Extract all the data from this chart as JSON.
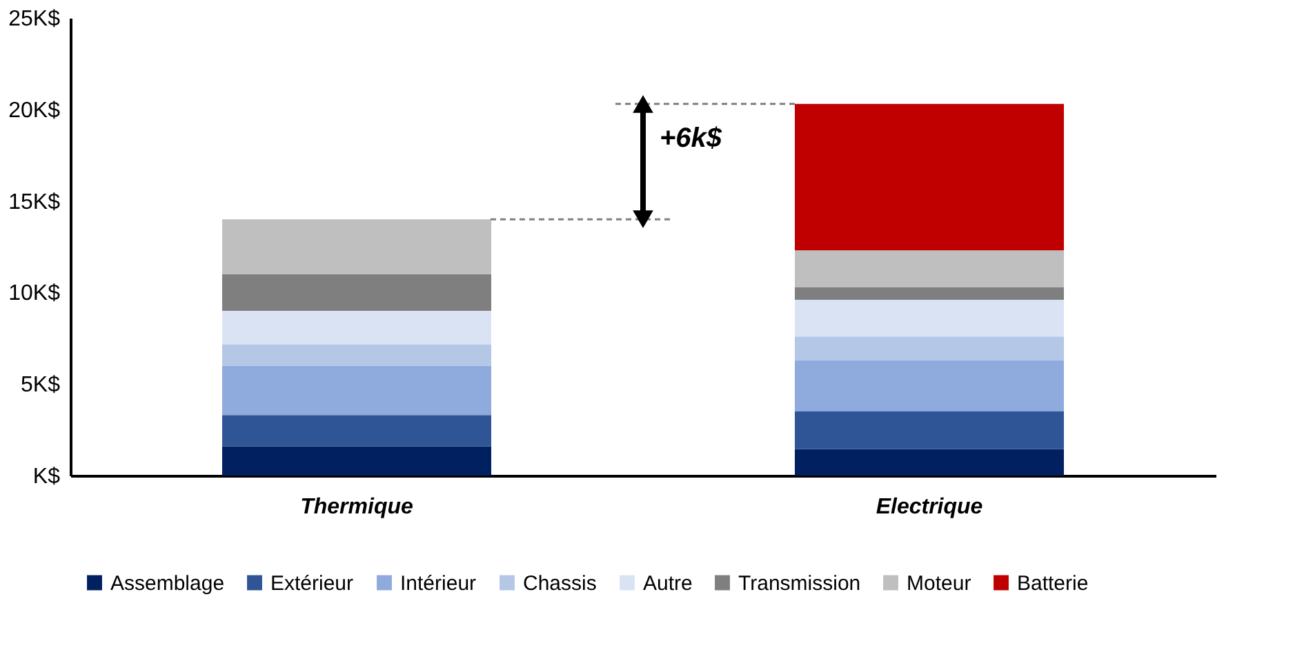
{
  "chart_data": {
    "type": "bar",
    "stacked": true,
    "categories": [
      "Thermique",
      "Electrique"
    ],
    "series": [
      {
        "name": "Assemblage",
        "color": "#002060",
        "values": [
          1.6,
          1.45
        ]
      },
      {
        "name": "Extérieur",
        "color": "#2f5597",
        "values": [
          1.7,
          2.05
        ]
      },
      {
        "name": "Intérieur",
        "color": "#8faadc",
        "values": [
          2.7,
          2.8
        ]
      },
      {
        "name": "Chassis",
        "color": "#b4c7e7",
        "values": [
          1.15,
          1.3
        ]
      },
      {
        "name": "Autre",
        "color": "#dae3f3",
        "values": [
          1.85,
          2.0
        ]
      },
      {
        "name": "Transmission",
        "color": "#7f7f7f",
        "values": [
          2.0,
          0.7
        ]
      },
      {
        "name": "Moteur",
        "color": "#bfbfbf",
        "values": [
          3.0,
          2.0
        ]
      },
      {
        "name": "Batterie",
        "color": "#c00000",
        "values": [
          0,
          8.0
        ]
      }
    ],
    "ylim": [
      0,
      25
    ],
    "yticks": [
      {
        "value": 0,
        "label": "K$"
      },
      {
        "value": 5,
        "label": "5K$"
      },
      {
        "value": 10,
        "label": "10K$"
      },
      {
        "value": 15,
        "label": "15K$"
      },
      {
        "value": 20,
        "label": "20K$"
      },
      {
        "value": 25,
        "label": "25K$"
      }
    ],
    "grid": false,
    "legend": "bottom",
    "ref_lines": [
      {
        "axis": "y",
        "value": 14,
        "color": "#7f7f7f",
        "line_style": "dashed"
      },
      {
        "axis": "y",
        "value": 20.3,
        "color": "#7f7f7f",
        "line_style": "dashed"
      }
    ],
    "annotations": [
      "+6k$"
    ]
  }
}
